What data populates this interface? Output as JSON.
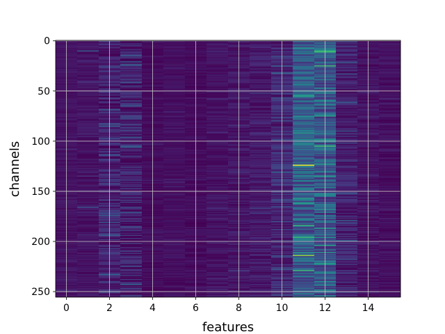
{
  "chart_data": {
    "type": "heatmap",
    "title": "",
    "xlabel": "features",
    "ylabel": "channels",
    "n_features": 16,
    "n_channels": 256,
    "xlim": [
      -0.5,
      15.5
    ],
    "ylim": [
      255.5,
      -0.5
    ],
    "y_inverted": true,
    "xticks": [
      0,
      2,
      4,
      6,
      8,
      10,
      12,
      14
    ],
    "yticks": [
      0,
      50,
      100,
      150,
      200,
      250
    ],
    "grid": true,
    "colormap": "viridis",
    "vmin": 0,
    "vmax": 1,
    "colors": {
      "low": "#440154",
      "mid": "#21918c",
      "high": "#fde725",
      "grid": "#c8c8c8"
    },
    "feature_levels": [
      0.05,
      0.05,
      0.09,
      0.09,
      0.03,
      0.04,
      0.03,
      0.05,
      0.06,
      0.07,
      0.12,
      0.3,
      0.28,
      0.09,
      0.05,
      0.04
    ],
    "feature_noise": [
      0.03,
      0.04,
      0.1,
      0.12,
      0.03,
      0.03,
      0.03,
      0.04,
      0.05,
      0.06,
      0.1,
      0.16,
      0.18,
      0.09,
      0.05,
      0.04
    ],
    "highlights": [
      {
        "feature": 11,
        "channel": 124,
        "value": 1.0
      },
      {
        "feature": 11,
        "channel": 55,
        "value": 0.62
      },
      {
        "feature": 11,
        "channel": 92,
        "value": 0.55
      },
      {
        "feature": 11,
        "channel": 20,
        "value": 0.45
      },
      {
        "feature": 11,
        "channel": 214,
        "value": 0.85
      },
      {
        "feature": 11,
        "channel": 148,
        "value": 0.45
      },
      {
        "feature": 11,
        "channel": 178,
        "value": 0.45
      },
      {
        "feature": 11,
        "channel": 197,
        "value": 0.4
      },
      {
        "feature": 11,
        "channel": 252,
        "value": 0.45
      },
      {
        "feature": 12,
        "channel": 25,
        "value": 0.7
      },
      {
        "feature": 12,
        "channel": 47,
        "value": 0.45
      },
      {
        "feature": 12,
        "channel": 60,
        "value": 0.5
      },
      {
        "feature": 12,
        "channel": 98,
        "value": 0.5
      },
      {
        "feature": 12,
        "channel": 108,
        "value": 0.45
      },
      {
        "feature": 12,
        "channel": 123,
        "value": 0.55
      },
      {
        "feature": 12,
        "channel": 135,
        "value": 0.55
      },
      {
        "feature": 12,
        "channel": 168,
        "value": 0.5
      },
      {
        "feature": 12,
        "channel": 187,
        "value": 0.55
      },
      {
        "feature": 12,
        "channel": 222,
        "value": 0.55
      },
      {
        "feature": 12,
        "channel": 240,
        "value": 0.5
      },
      {
        "feature": 10,
        "channel": 131,
        "value": 0.35
      },
      {
        "feature": 1,
        "channel": 10,
        "value": 0.3
      },
      {
        "feature": 1,
        "channel": 166,
        "value": 0.25
      },
      {
        "feature": 3,
        "channel": 105,
        "value": 0.25
      },
      {
        "feature": 3,
        "channel": 225,
        "value": 0.25
      }
    ]
  }
}
